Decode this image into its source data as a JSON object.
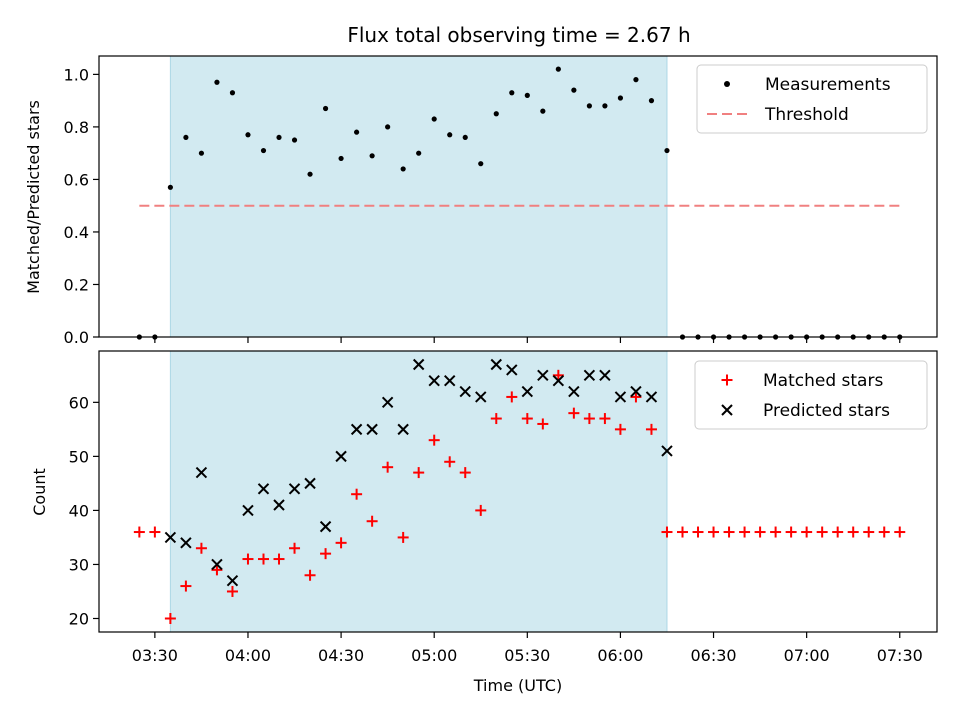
{
  "colors": {
    "measurement": "#000000",
    "threshold": "#f08080",
    "matched": "#ff0000",
    "predicted": "#000000",
    "observing_window": "#add8e6"
  },
  "chart_data": [
    {
      "type": "scatter",
      "title": "Flux total observing time = 2.67 h",
      "xlabel": "",
      "ylabel": "Matched/Predicted stars",
      "xlim": [
        "03:12",
        "07:42"
      ],
      "ylim": [
        0,
        1.07
      ],
      "yticks": [
        "0.0",
        "0.2",
        "0.4",
        "0.6",
        "0.8",
        "1.0"
      ],
      "observing_window": [
        "03:35",
        "06:15"
      ],
      "legend_position": "top-right",
      "series": [
        {
          "name": "Measurements",
          "style": "dot",
          "x": [
            "03:25",
            "03:30",
            "03:35",
            "03:40",
            "03:45",
            "03:50",
            "03:55",
            "04:00",
            "04:05",
            "04:10",
            "04:15",
            "04:20",
            "04:25",
            "04:30",
            "04:35",
            "04:40",
            "04:45",
            "04:50",
            "04:55",
            "05:00",
            "05:05",
            "05:10",
            "05:15",
            "05:20",
            "05:25",
            "05:30",
            "05:35",
            "05:40",
            "05:45",
            "05:50",
            "05:55",
            "06:00",
            "06:05",
            "06:10",
            "06:15",
            "06:20",
            "06:25",
            "06:30",
            "06:35",
            "06:40",
            "06:45",
            "06:50",
            "06:55",
            "07:00",
            "07:05",
            "07:10",
            "07:15",
            "07:20",
            "07:25",
            "07:30"
          ],
          "y": [
            0,
            0,
            0.57,
            0.76,
            0.7,
            0.97,
            0.93,
            0.77,
            0.71,
            0.76,
            0.75,
            0.62,
            0.87,
            0.68,
            0.78,
            0.69,
            0.8,
            0.64,
            0.7,
            0.83,
            0.77,
            0.76,
            0.66,
            0.85,
            0.93,
            0.92,
            0.86,
            1.02,
            0.94,
            0.88,
            0.88,
            0.91,
            0.98,
            0.9,
            0.71,
            0,
            0,
            0,
            0,
            0,
            0,
            0,
            0,
            0,
            0,
            0,
            0,
            0,
            0,
            0
          ]
        },
        {
          "name": "Threshold",
          "style": "dashed-line",
          "x": [
            "03:25",
            "07:30"
          ],
          "y": [
            0.5,
            0.5
          ]
        }
      ]
    },
    {
      "type": "scatter",
      "title": "",
      "xlabel": "Time (UTC)",
      "ylabel": "Count",
      "xlim": [
        "03:12",
        "07:42"
      ],
      "ylim": [
        17.5,
        69.5
      ],
      "yticks": [
        "20",
        "30",
        "40",
        "50",
        "60"
      ],
      "xticks": [
        "03:30",
        "04:00",
        "04:30",
        "05:00",
        "05:30",
        "06:00",
        "06:30",
        "07:00",
        "07:30"
      ],
      "observing_window": [
        "03:35",
        "06:15"
      ],
      "legend_position": "top-right",
      "series": [
        {
          "name": "Matched stars",
          "style": "plus",
          "x": [
            "03:25",
            "03:30",
            "03:35",
            "03:40",
            "03:45",
            "03:50",
            "03:55",
            "04:00",
            "04:05",
            "04:10",
            "04:15",
            "04:20",
            "04:25",
            "04:30",
            "04:35",
            "04:40",
            "04:45",
            "04:50",
            "04:55",
            "05:00",
            "05:05",
            "05:10",
            "05:15",
            "05:20",
            "05:25",
            "05:30",
            "05:35",
            "05:40",
            "05:45",
            "05:50",
            "05:55",
            "06:00",
            "06:05",
            "06:10",
            "06:15",
            "06:20",
            "06:25",
            "06:30",
            "06:35",
            "06:40",
            "06:45",
            "06:50",
            "06:55",
            "07:00",
            "07:05",
            "07:10",
            "07:15",
            "07:20",
            "07:25",
            "07:30"
          ],
          "y": [
            36,
            36,
            20,
            26,
            33,
            29,
            25,
            31,
            31,
            31,
            33,
            28,
            32,
            34,
            43,
            38,
            48,
            35,
            47,
            53,
            49,
            47,
            40,
            57,
            61,
            57,
            56,
            65,
            58,
            57,
            57,
            55,
            61,
            55,
            36,
            36,
            36,
            36,
            36,
            36,
            36,
            36,
            36,
            36,
            36,
            36,
            36,
            36,
            36,
            36
          ]
        },
        {
          "name": "Predicted stars",
          "style": "x",
          "x": [
            "03:35",
            "03:40",
            "03:45",
            "03:50",
            "03:55",
            "04:00",
            "04:05",
            "04:10",
            "04:15",
            "04:20",
            "04:25",
            "04:30",
            "04:35",
            "04:40",
            "04:45",
            "04:50",
            "04:55",
            "05:00",
            "05:05",
            "05:10",
            "05:15",
            "05:20",
            "05:25",
            "05:30",
            "05:35",
            "05:40",
            "05:45",
            "05:50",
            "05:55",
            "06:00",
            "06:05",
            "06:10",
            "06:15"
          ],
          "y": [
            35,
            34,
            47,
            30,
            27,
            40,
            44,
            41,
            44,
            45,
            37,
            50,
            55,
            55,
            60,
            55,
            67,
            64,
            64,
            62,
            61,
            67,
            66,
            62,
            65,
            64,
            62,
            65,
            65,
            61,
            62,
            61,
            51
          ]
        }
      ]
    }
  ]
}
